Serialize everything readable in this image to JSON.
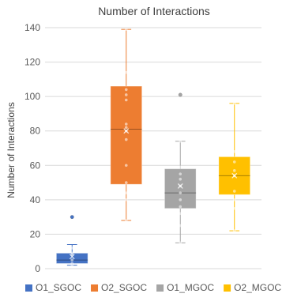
{
  "chart_data": {
    "type": "boxplot",
    "title": "Number of Interactions",
    "xlabel": "",
    "ylabel": "Number of Interactions",
    "ylim": [
      0,
      140
    ],
    "yticks": [
      0,
      20,
      40,
      60,
      80,
      100,
      120,
      140
    ],
    "grid": true,
    "legend_position": "bottom",
    "series": [
      {
        "name": "O1_SGOC",
        "color": "#4472C4",
        "whisker_low": 2,
        "q1": 3,
        "median": 5,
        "mean": 7,
        "q3": 9,
        "whisker_high": 14,
        "points": [
          2,
          3,
          5,
          8,
          9,
          12,
          30
        ],
        "outliers": [
          30
        ]
      },
      {
        "name": "O2_SGOC",
        "color": "#ED7D31",
        "whisker_low": 28,
        "q1": 49,
        "median": 81,
        "mean": 80,
        "q3": 106,
        "whisker_high": 139,
        "points": [
          28,
          40,
          44,
          50,
          60,
          75,
          80,
          82,
          84,
          98,
          101,
          104,
          114,
          139
        ],
        "outliers": []
      },
      {
        "name": "O1_MGOC",
        "color": "#A5A5A5",
        "whisker_low": 15,
        "q1": 35,
        "median": 44,
        "mean": 48,
        "q3": 58,
        "whisker_high": 74,
        "points": [
          15,
          25,
          32,
          36,
          40,
          44,
          48,
          52,
          55,
          59,
          74,
          101
        ],
        "outliers": [
          101
        ]
      },
      {
        "name": "O2_MGOC",
        "color": "#FFC000",
        "whisker_low": 22,
        "q1": 43,
        "median": 54,
        "mean": 54,
        "q3": 65,
        "whisker_high": 96,
        "points": [
          22,
          35,
          40,
          45,
          54,
          57,
          62,
          68,
          96
        ],
        "outliers": []
      }
    ]
  }
}
